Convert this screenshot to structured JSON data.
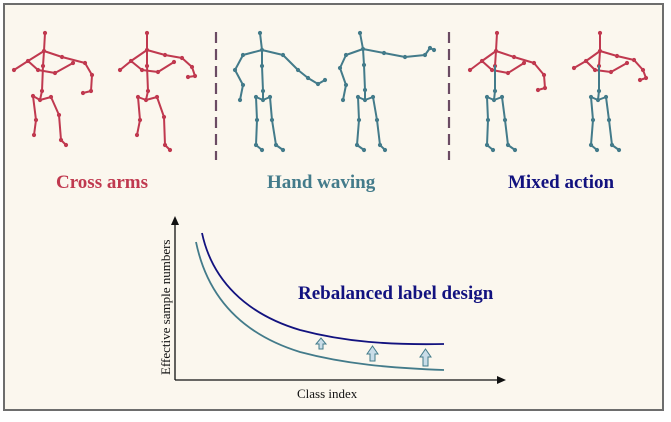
{
  "actions": [
    {
      "label": "Cross arms",
      "color": "#c0394f"
    },
    {
      "label": "Hand waving",
      "color": "#437b8a"
    },
    {
      "label": "Mixed action",
      "color": "#12127f"
    }
  ],
  "separator_color": "#6b4b63",
  "chart": {
    "title": "Rebalanced label design",
    "title_color": "#12127f",
    "xlabel": "Class index",
    "ylabel": "Effective sample numbers",
    "original_curve_color": "#437b8a",
    "rebalanced_curve_color": "#12127f",
    "arrow_fill": "#c9dde8",
    "arrow_stroke": "#437b8a"
  }
}
